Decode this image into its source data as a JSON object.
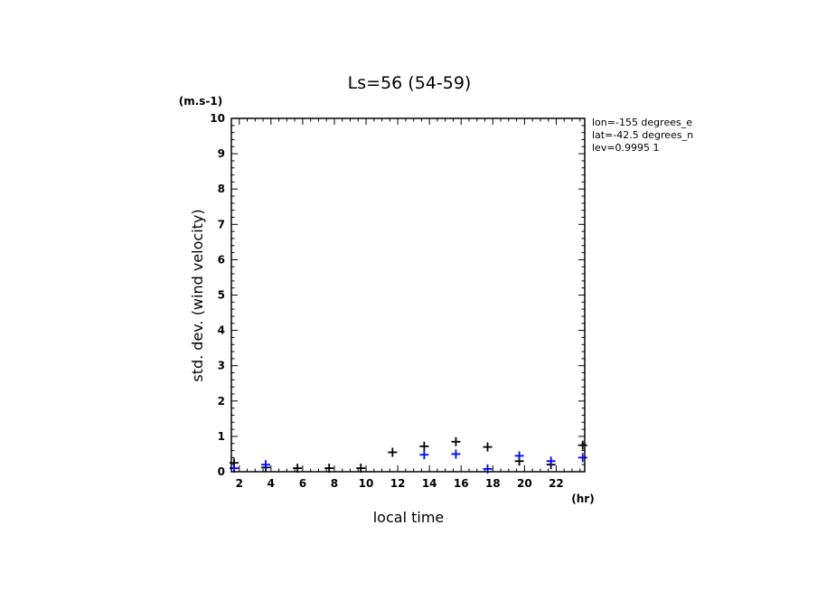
{
  "chart_data": {
    "type": "scatter",
    "title": "Ls=56 (54-59)",
    "xlabel": "local time",
    "ylabel": "std. dev. (wind velocity)",
    "x_unit": "(hr)",
    "y_unit": "(m.s-1)",
    "xlim": [
      1.5,
      23.8
    ],
    "ylim": [
      0,
      10
    ],
    "x_ticks": [
      2,
      4,
      6,
      8,
      10,
      12,
      14,
      16,
      18,
      20,
      22
    ],
    "y_ticks": [
      0,
      1,
      2,
      3,
      4,
      5,
      6,
      7,
      8,
      9,
      10
    ],
    "grid": false,
    "info_lines": [
      "lon=-155 degrees_e",
      "lat=-42.5 degrees_n",
      "lev=0.9995 1"
    ],
    "series": [
      {
        "color": "#000000",
        "marker": "plus",
        "x": [
          1.67,
          3.67,
          5.67,
          7.67,
          9.67,
          11.67,
          13.67,
          15.67,
          17.67,
          19.67,
          21.67,
          23.67
        ],
        "y": [
          0.25,
          0.12,
          0.1,
          0.1,
          0.1,
          0.55,
          0.72,
          0.85,
          0.7,
          0.3,
          0.2,
          0.75
        ]
      },
      {
        "color": "#0000ff",
        "marker": "plus",
        "x": [
          1.67,
          3.67,
          13.67,
          15.67,
          17.67,
          19.67,
          21.67,
          23.67
        ],
        "y": [
          0.1,
          0.2,
          0.48,
          0.5,
          0.08,
          0.45,
          0.3,
          0.4
        ]
      }
    ]
  }
}
